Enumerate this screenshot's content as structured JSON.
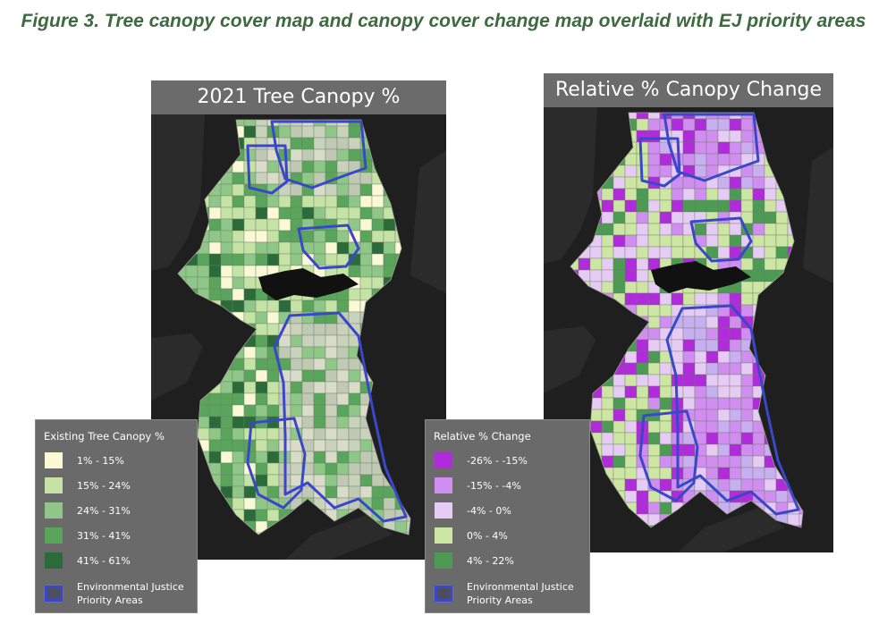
{
  "figure_title": "Figure 3. Tree canopy cover map and canopy cover change map overlaid with EJ priority areas",
  "colors": {
    "title_green": "#3d6a3f",
    "panel_bg": "#1e1e1e",
    "header_bg": "#6b6b6b",
    "ej_outline": "#3b47c9"
  },
  "left_map": {
    "title": "2021 Tree Canopy %",
    "legend_title": "Existing Tree Canopy %",
    "classes": [
      {
        "label": "1% - 15%",
        "color": "#fbf8d6"
      },
      {
        "label": "15% - 24%",
        "color": "#c6e3a6"
      },
      {
        "label": "24% - 31%",
        "color": "#8fc788"
      },
      {
        "label": "31% - 41%",
        "color": "#5aa55c"
      },
      {
        "label": "41% - 61%",
        "color": "#2b6b3a"
      }
    ],
    "ej_label_line1": "Environmental Justice",
    "ej_label_line2": "Priority Areas"
  },
  "right_map": {
    "title": "Relative % Canopy Change",
    "legend_title": "Relative % Change",
    "classes": [
      {
        "label": "-26% - -15%",
        "color": "#b02bd9"
      },
      {
        "label": "-15% - -4%",
        "color": "#d08ef0"
      },
      {
        "label": "-4% - 0%",
        "color": "#e6ccf5"
      },
      {
        "label": "0% - 4%",
        "color": "#cde6a4"
      },
      {
        "label": "4% - 22%",
        "color": "#4d9a55"
      }
    ],
    "ej_label_line1": "Environmental Justice",
    "ej_label_line2": "Priority Areas"
  }
}
